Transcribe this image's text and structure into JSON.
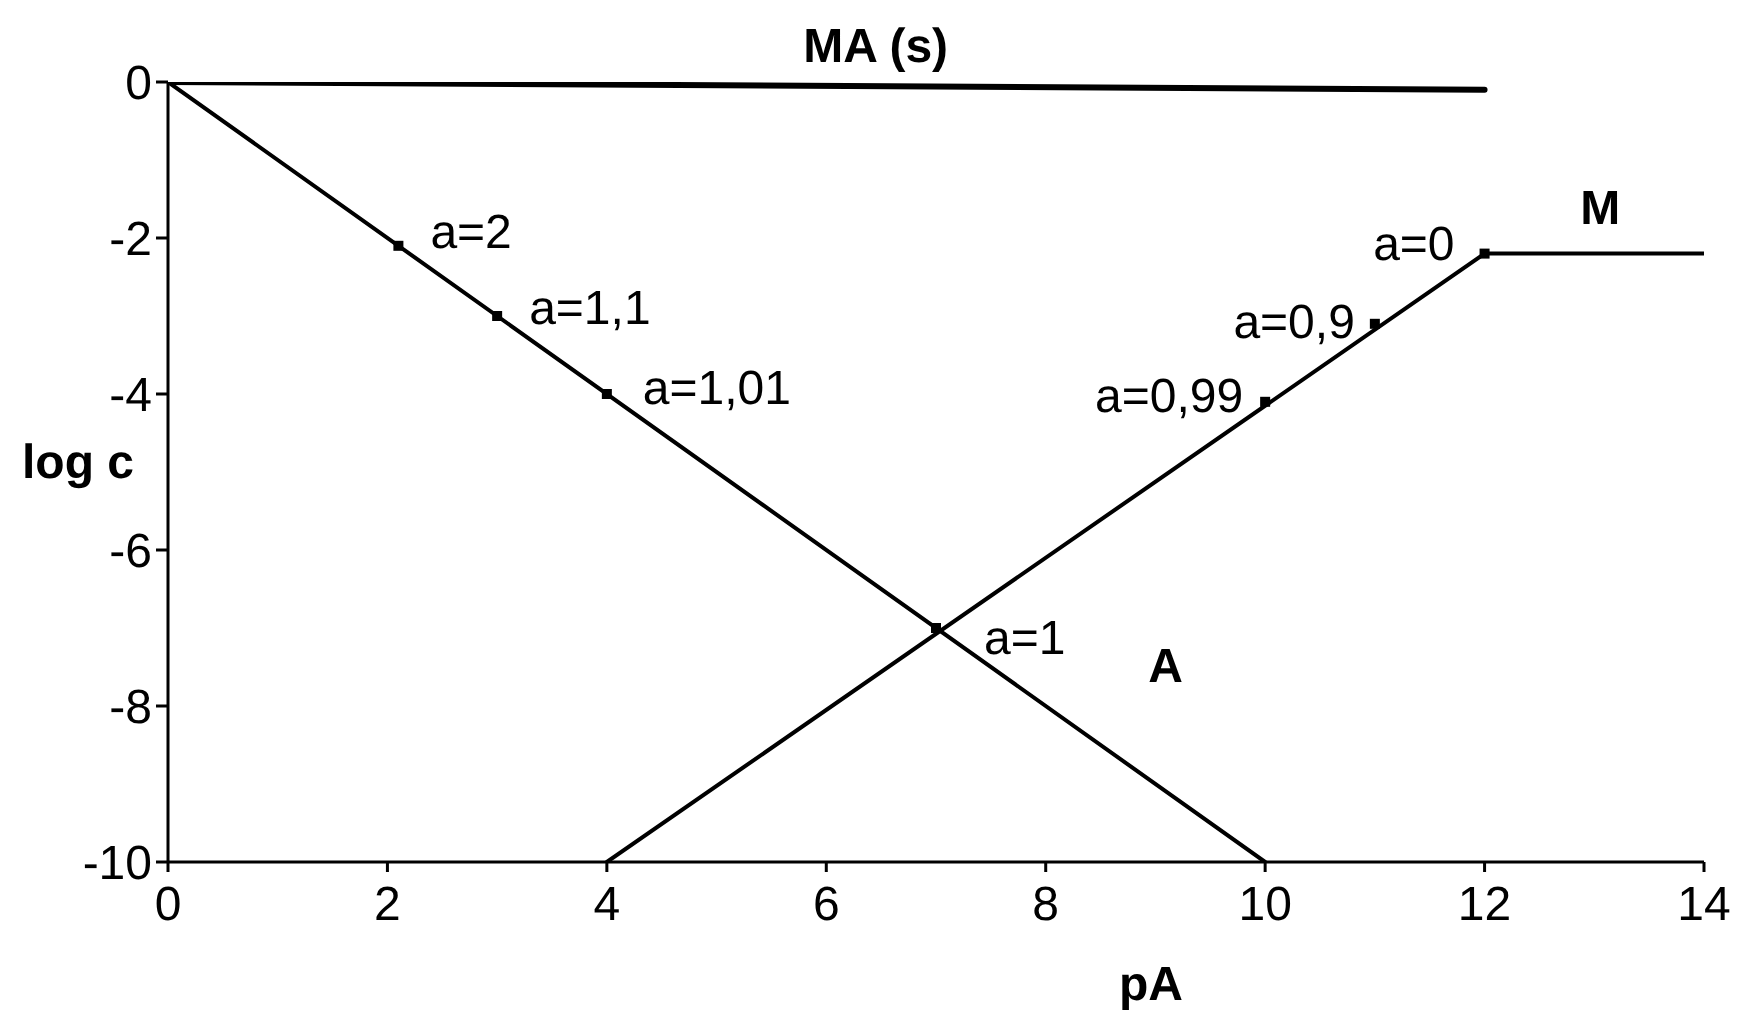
{
  "chart_data": {
    "type": "line",
    "xlabel": "pA",
    "ylabel": "log c",
    "marker": "none",
    "line_style": "solid",
    "series": [
      {
        "name": "MA (s)",
        "color": "#000000",
        "x": [
          0,
          12
        ],
        "values": [
          0,
          -0.1
        ]
      },
      {
        "name": "A",
        "color": "#000000",
        "x": [
          0,
          10
        ],
        "values": [
          0,
          -10
        ]
      },
      {
        "name": "M",
        "color": "#000000",
        "x": [
          4,
          12,
          14
        ],
        "values": [
          -10,
          -2.2,
          -2.2
        ]
      },
      {
        "type": "scatter",
        "color": "#000000",
        "marker": "square",
        "x": [
          2.1,
          3,
          4,
          7,
          10,
          11,
          12
        ],
        "values": [
          -2.1,
          -3,
          -4,
          -7,
          -4.1,
          -3.1,
          -2.2
        ]
      }
    ],
    "annotations": [
      {
        "text": "a=2",
        "x": 2.1,
        "y": -2.1
      },
      {
        "text": "a=1,1",
        "x": 3,
        "y": -3
      },
      {
        "text": "a=1,01",
        "x": 4,
        "y": -4
      },
      {
        "text": "a=1",
        "x": 7,
        "y": -7
      },
      {
        "text": "a=0,99",
        "x": 10,
        "y": -4.1
      },
      {
        "text": "a=0,9",
        "x": 11,
        "y": -3.1
      },
      {
        "text": "a=0",
        "x": 12,
        "y": -2.2
      }
    ],
    "xlim": [
      0,
      14
    ],
    "xticks": [
      0,
      2,
      4,
      6,
      8,
      10,
      12,
      14
    ],
    "ylim": [
      -10,
      0
    ],
    "yticks": [
      0,
      -2,
      -4,
      -6,
      -8,
      -10
    ]
  }
}
